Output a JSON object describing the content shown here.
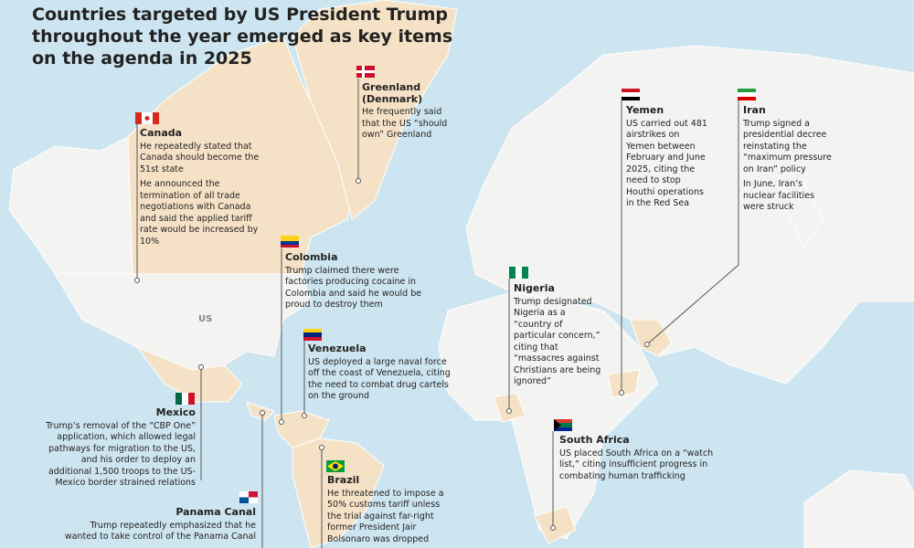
{
  "title": "Countries targeted by US President Trump throughout the year emerged as key items on the agenda in 2025",
  "map_labels": {
    "us": "US"
  },
  "annotations": {
    "greenland": {
      "country": "Greenland (Denmark)",
      "paragraphs": [
        "He frequently said that the US “should own” Greenland"
      ]
    },
    "canada": {
      "country": "Canada",
      "paragraphs": [
        "He repeatedly stated that Canada should become the 51st state",
        "He announced the termination of all trade negotiations with Canada and said the applied tariff rate would be increased by 10%"
      ]
    },
    "colombia": {
      "country": "Colombia",
      "paragraphs": [
        "Trump claimed there were factories producing cocaine in Colombia and said he would be proud to destroy them"
      ]
    },
    "venezuela": {
      "country": "Venezuela",
      "paragraphs": [
        "US deployed a large naval force off the coast of Venezuela, citing the need to combat drug cartels on the ground"
      ]
    },
    "mexico": {
      "country": "Mexico",
      "paragraphs": [
        "Trump’s removal of the “CBP One” application, which allowed legal pathways for migration to the US, and his order to deploy an additional 1,500 troops to the US-Mexico border strained relations"
      ]
    },
    "panama": {
      "country": "Panama Canal",
      "paragraphs": [
        "Trump repeatedly emphasized that he wanted to take control of the Panama Canal"
      ]
    },
    "brazil": {
      "country": "Brazil",
      "paragraphs": [
        "He threatened to impose a 50% customs tariff unless the trial against far-right former President Jair Bolsonaro was dropped"
      ]
    },
    "nigeria": {
      "country": "Nigeria",
      "paragraphs": [
        "Trump designated Nigeria as a “country of particular concern,” citing that “massacres against Christians are being ignored”"
      ]
    },
    "south_africa": {
      "country": "South Africa",
      "paragraphs": [
        "US placed South Africa on a “watch list,” citing insufficient progress in combating human trafficking"
      ]
    },
    "yemen": {
      "country": "Yemen",
      "paragraphs": [
        "US carried out 481 airstrikes on Yemen between February and June 2025, citing the need to stop Houthi operations in the Red Sea"
      ]
    },
    "iran": {
      "country": "Iran",
      "paragraphs": [
        "Trump signed a presidential decree reinstating the “maximum pressure on Iran” policy",
        "In June, Iran’s nuclear facilities were struck"
      ]
    }
  }
}
